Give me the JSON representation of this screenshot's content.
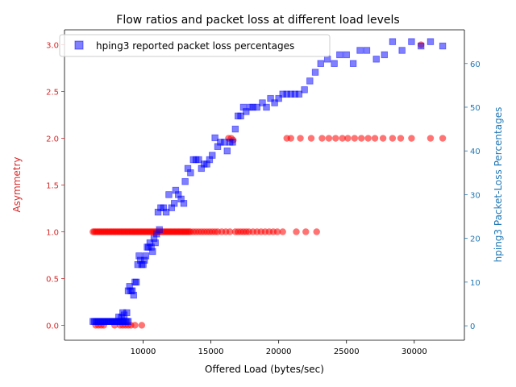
{
  "chart_data": {
    "type": "scatter",
    "title": "Flow ratios and packet loss at different load levels",
    "xlabel": "Offered Load (bytes/sec)",
    "ylabel_left": "Asymmetry",
    "ylabel_right": "hping3 Packet-Loss Percentages",
    "xlim": [
      4200,
      33700
    ],
    "ylim_left": [
      -0.16,
      3.16
    ],
    "ylim_right": [
      -3.3,
      67.7
    ],
    "x_ticks": [
      10000,
      15000,
      20000,
      25000,
      30000
    ],
    "x_tick_labels": [
      "10000",
      "15000",
      "20000",
      "25000",
      "30000"
    ],
    "y_left_ticks": [
      0.0,
      0.5,
      1.0,
      1.5,
      2.0,
      2.5,
      3.0
    ],
    "y_left_tick_labels": [
      "0.0",
      "0.5",
      "1.0",
      "1.5",
      "2.0",
      "2.5",
      "3.0"
    ],
    "y_right_ticks": [
      0,
      10,
      20,
      30,
      40,
      50,
      60
    ],
    "y_right_tick_labels": [
      "0",
      "10",
      "20",
      "30",
      "40",
      "50",
      "60"
    ],
    "grid": false,
    "legend_position": "upper-left",
    "colors": {
      "asymmetry": "#ff0000",
      "asymmetry_axis": "#d62728",
      "loss": "#0000ff",
      "loss_axis": "#1f77b4"
    },
    "series": [
      {
        "label_ref": "",
        "axis": "left",
        "marker": "circle",
        "points": [
          [
            6300,
            1.0
          ],
          [
            6400,
            1.0
          ],
          [
            6500,
            1.0
          ],
          [
            6600,
            1.0
          ],
          [
            6700,
            1.0
          ],
          [
            6800,
            1.0
          ],
          [
            6900,
            1.0
          ],
          [
            7000,
            1.0
          ],
          [
            7100,
            1.0
          ],
          [
            7200,
            1.0
          ],
          [
            7300,
            1.0
          ],
          [
            7400,
            1.0
          ],
          [
            7500,
            1.0
          ],
          [
            7600,
            1.0
          ],
          [
            7700,
            1.0
          ],
          [
            7800,
            1.0
          ],
          [
            7900,
            1.0
          ],
          [
            8000,
            1.0
          ],
          [
            8100,
            1.0
          ],
          [
            8200,
            1.0
          ],
          [
            8300,
            1.0
          ],
          [
            8400,
            1.0
          ],
          [
            8500,
            1.0
          ],
          [
            8600,
            1.0
          ],
          [
            8700,
            1.0
          ],
          [
            8800,
            1.0
          ],
          [
            8900,
            1.0
          ],
          [
            9000,
            1.0
          ],
          [
            9100,
            1.0
          ],
          [
            9200,
            1.0
          ],
          [
            9300,
            1.0
          ],
          [
            9400,
            1.0
          ],
          [
            9500,
            1.0
          ],
          [
            9600,
            1.0
          ],
          [
            9700,
            1.0
          ],
          [
            9800,
            1.0
          ],
          [
            9900,
            1.0
          ],
          [
            10000,
            1.0
          ],
          [
            10100,
            1.0
          ],
          [
            10200,
            1.0
          ],
          [
            10300,
            1.0
          ],
          [
            10400,
            1.0
          ],
          [
            10500,
            1.0
          ],
          [
            10600,
            1.0
          ],
          [
            10700,
            1.0
          ],
          [
            10800,
            1.0
          ],
          [
            10900,
            1.0
          ],
          [
            11000,
            1.0
          ],
          [
            11100,
            1.0
          ],
          [
            11200,
            1.0
          ],
          [
            11300,
            1.0
          ],
          [
            11400,
            1.0
          ],
          [
            11500,
            1.0
          ],
          [
            11600,
            1.0
          ],
          [
            11700,
            1.0
          ],
          [
            11800,
            1.0
          ],
          [
            11900,
            1.0
          ],
          [
            12000,
            1.0
          ],
          [
            12100,
            1.0
          ],
          [
            12200,
            1.0
          ],
          [
            12300,
            1.0
          ],
          [
            12400,
            1.0
          ],
          [
            12500,
            1.0
          ],
          [
            12600,
            1.0
          ],
          [
            12700,
            1.0
          ],
          [
            12800,
            1.0
          ],
          [
            12900,
            1.0
          ],
          [
            13000,
            1.0
          ],
          [
            13100,
            1.0
          ],
          [
            13200,
            1.0
          ],
          [
            13300,
            1.0
          ],
          [
            13400,
            1.0
          ],
          [
            13500,
            1.0
          ],
          [
            13700,
            1.0
          ],
          [
            13900,
            1.0
          ],
          [
            14100,
            1.0
          ],
          [
            14300,
            1.0
          ],
          [
            14500,
            1.0
          ],
          [
            14700,
            1.0
          ],
          [
            14900,
            1.0
          ],
          [
            15100,
            1.0
          ],
          [
            15300,
            1.0
          ],
          [
            15500,
            1.0
          ],
          [
            15800,
            1.0
          ],
          [
            16100,
            1.0
          ],
          [
            16400,
            1.0
          ],
          [
            16800,
            1.0
          ],
          [
            17000,
            1.0
          ],
          [
            17200,
            1.0
          ],
          [
            17400,
            1.0
          ],
          [
            17600,
            1.0
          ],
          [
            17800,
            1.0
          ],
          [
            18100,
            1.0
          ],
          [
            18400,
            1.0
          ],
          [
            18700,
            1.0
          ],
          [
            19000,
            1.0
          ],
          [
            19300,
            1.0
          ],
          [
            19600,
            1.0
          ],
          [
            19900,
            1.0
          ],
          [
            20300,
            1.0
          ],
          [
            21300,
            1.0
          ],
          [
            22000,
            1.0
          ],
          [
            22800,
            1.0
          ],
          [
            6500,
            0.0
          ],
          [
            6700,
            0.0
          ],
          [
            6900,
            0.0
          ],
          [
            7100,
            0.0
          ],
          [
            7900,
            0.0
          ],
          [
            8300,
            0.0
          ],
          [
            8500,
            0.0
          ],
          [
            8700,
            0.0
          ],
          [
            8900,
            0.0
          ],
          [
            9100,
            0.0
          ],
          [
            9400,
            0.0
          ],
          [
            9900,
            0.0
          ],
          [
            16300,
            2.0
          ],
          [
            16500,
            2.0
          ],
          [
            16650,
            1.98
          ],
          [
            20600,
            2.0
          ],
          [
            20900,
            2.0
          ],
          [
            21600,
            2.0
          ],
          [
            22400,
            2.0
          ],
          [
            23200,
            2.0
          ],
          [
            23700,
            2.0
          ],
          [
            24200,
            2.0
          ],
          [
            24700,
            2.0
          ],
          [
            25100,
            2.0
          ],
          [
            25600,
            2.0
          ],
          [
            26100,
            2.0
          ],
          [
            26600,
            2.0
          ],
          [
            27100,
            2.0
          ],
          [
            27700,
            2.0
          ],
          [
            28400,
            2.0
          ],
          [
            29000,
            2.0
          ],
          [
            29800,
            2.0
          ],
          [
            31200,
            2.0
          ],
          [
            32100,
            2.0
          ],
          [
            30500,
            3.0
          ]
        ]
      },
      {
        "label_ref": "legend.entry_label",
        "axis": "right",
        "marker": "square",
        "points": [
          [
            6300,
            1.0
          ],
          [
            6400,
            1.0
          ],
          [
            6500,
            1.0
          ],
          [
            6600,
            1.0
          ],
          [
            6700,
            1.0
          ],
          [
            6800,
            1.0
          ],
          [
            6900,
            1.0
          ],
          [
            7000,
            1.0
          ],
          [
            7100,
            1.0
          ],
          [
            7200,
            1.0
          ],
          [
            7300,
            1.0
          ],
          [
            7400,
            1.0
          ],
          [
            7500,
            1.0
          ],
          [
            7600,
            1.0
          ],
          [
            7700,
            1.0
          ],
          [
            7800,
            1.0
          ],
          [
            7900,
            1.0
          ],
          [
            8000,
            1.0
          ],
          [
            8100,
            1.0
          ],
          [
            8200,
            1.0
          ],
          [
            8300,
            1.0
          ],
          [
            8400,
            1.0
          ],
          [
            8500,
            1.0
          ],
          [
            8600,
            1.0
          ],
          [
            8700,
            1.0
          ],
          [
            8800,
            1.0
          ],
          [
            8900,
            1.0
          ],
          [
            8200,
            2.0
          ],
          [
            8400,
            2.0
          ],
          [
            8600,
            2.5
          ],
          [
            8800,
            3.0
          ],
          [
            8500,
            3.0
          ],
          [
            8900,
            8.0
          ],
          [
            9000,
            9.0
          ],
          [
            9100,
            8.0
          ],
          [
            9200,
            8.0
          ],
          [
            9300,
            7.0
          ],
          [
            9400,
            10.0
          ],
          [
            9500,
            10.0
          ],
          [
            9600,
            14.0
          ],
          [
            9700,
            16.0
          ],
          [
            9800,
            15.0
          ],
          [
            9900,
            14.0
          ],
          [
            10000,
            14.0
          ],
          [
            10100,
            15.0
          ],
          [
            10200,
            16.0
          ],
          [
            10300,
            18.0
          ],
          [
            10400,
            18.0
          ],
          [
            10500,
            19.0
          ],
          [
            10600,
            18.0
          ],
          [
            10700,
            17.0
          ],
          [
            10800,
            20.0
          ],
          [
            10900,
            19.0
          ],
          [
            11000,
            21.0
          ],
          [
            11100,
            26.0
          ],
          [
            11200,
            22.0
          ],
          [
            11300,
            27.0
          ],
          [
            11500,
            27.0
          ],
          [
            11700,
            26.0
          ],
          [
            11900,
            30.0
          ],
          [
            12100,
            27.0
          ],
          [
            12300,
            28.0
          ],
          [
            12400,
            31.0
          ],
          [
            12600,
            30.0
          ],
          [
            12800,
            29.0
          ],
          [
            13000,
            28.0
          ],
          [
            13100,
            33.0
          ],
          [
            13300,
            36.0
          ],
          [
            13500,
            35.0
          ],
          [
            13700,
            38.0
          ],
          [
            13900,
            38.0
          ],
          [
            14100,
            38.0
          ],
          [
            14300,
            36.0
          ],
          [
            14500,
            37.0
          ],
          [
            14700,
            37.0
          ],
          [
            14900,
            38.0
          ],
          [
            15100,
            39.0
          ],
          [
            15300,
            43.0
          ],
          [
            15500,
            41.0
          ],
          [
            15700,
            42.0
          ],
          [
            16000,
            42.0
          ],
          [
            16200,
            40.0
          ],
          [
            16400,
            42.0
          ],
          [
            16600,
            42.0
          ],
          [
            16800,
            45.0
          ],
          [
            17000,
            48.0
          ],
          [
            17200,
            48.0
          ],
          [
            17400,
            50.0
          ],
          [
            17600,
            49.0
          ],
          [
            17900,
            50.0
          ],
          [
            18100,
            50.0
          ],
          [
            18400,
            50.0
          ],
          [
            18800,
            51.0
          ],
          [
            19100,
            50.0
          ],
          [
            19400,
            52.0
          ],
          [
            19700,
            51.0
          ],
          [
            20000,
            52.0
          ],
          [
            20300,
            53.0
          ],
          [
            20600,
            53.0
          ],
          [
            20900,
            53.0
          ],
          [
            21200,
            53.0
          ],
          [
            21500,
            53.0
          ],
          [
            21900,
            54.0
          ],
          [
            22300,
            56.0
          ],
          [
            22700,
            58.0
          ],
          [
            23100,
            60.0
          ],
          [
            23600,
            61.0
          ],
          [
            24100,
            60.0
          ],
          [
            24500,
            62.0
          ],
          [
            25000,
            62.0
          ],
          [
            25500,
            60.0
          ],
          [
            26000,
            63.0
          ],
          [
            26500,
            63.0
          ],
          [
            27200,
            61.0
          ],
          [
            27800,
            62.0
          ],
          [
            28400,
            65.0
          ],
          [
            29100,
            63.0
          ],
          [
            29800,
            65.0
          ],
          [
            30500,
            64.0
          ],
          [
            31200,
            65.0
          ],
          [
            32100,
            64.0
          ]
        ]
      }
    ]
  },
  "legend": {
    "entry_label": "hping3 reported packet loss percentages"
  }
}
